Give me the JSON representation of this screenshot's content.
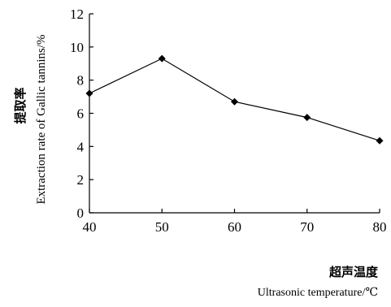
{
  "chart_data": {
    "type": "line",
    "x": [
      40,
      50,
      60,
      70,
      80
    ],
    "series": [
      {
        "values": [
          7.2,
          9.3,
          6.7,
          5.75,
          4.35
        ]
      }
    ],
    "xlim": [
      40,
      80
    ],
    "ylim": [
      0,
      12
    ],
    "xticks": [
      "40",
      "50",
      "60",
      "70",
      "80"
    ],
    "yticks": [
      "0",
      "2",
      "4",
      "6",
      "8",
      "10",
      "12"
    ],
    "ylabel_cn": "提取率",
    "ylabel_en": "Extraction rate of Gallic tannins/%",
    "xlabel_cn": "超声温度",
    "xlabel_en": "Ultrasonic temperature/℃",
    "grid": false,
    "marker": "diamond",
    "color": "#000000"
  }
}
